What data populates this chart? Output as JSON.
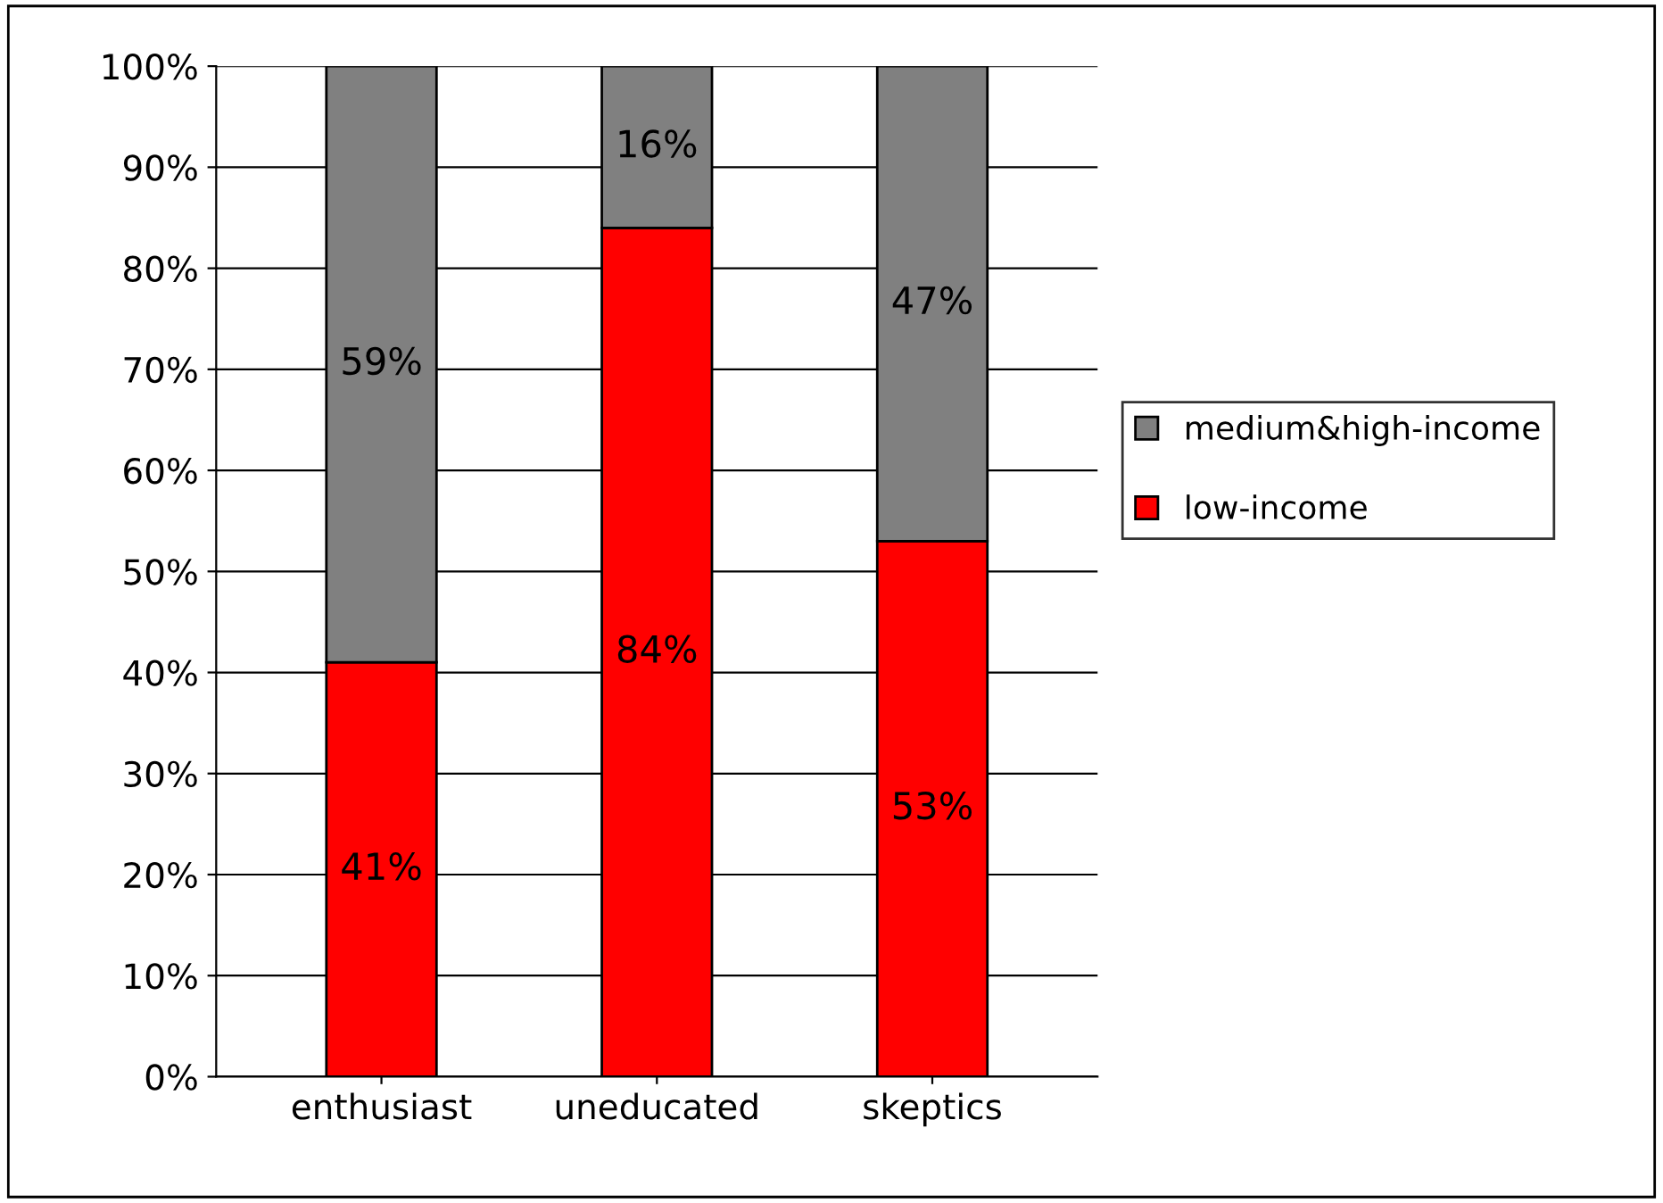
{
  "chart_data": {
    "type": "bar",
    "stacked": true,
    "categories": [
      "enthusiast",
      "uneducated",
      "skeptics"
    ],
    "series": [
      {
        "name": "low-income",
        "color": "#ff0000",
        "values": [
          41,
          84,
          53
        ]
      },
      {
        "name": "medium&high-income",
        "color": "#808080",
        "values": [
          59,
          16,
          47
        ]
      }
    ],
    "ylim": [
      0,
      100
    ],
    "yticks": [
      {
        "value": 0,
        "label": "0%"
      },
      {
        "value": 10,
        "label": "10%"
      },
      {
        "value": 20,
        "label": "20%"
      },
      {
        "value": 30,
        "label": "30%"
      },
      {
        "value": 40,
        "label": "40%"
      },
      {
        "value": 50,
        "label": "50%"
      },
      {
        "value": 60,
        "label": "60%"
      },
      {
        "value": 70,
        "label": "70%"
      },
      {
        "value": 80,
        "label": "80%"
      },
      {
        "value": 90,
        "label": "90%"
      },
      {
        "value": 100,
        "label": "100%"
      }
    ],
    "value_labels": [
      [
        "41%",
        "84%",
        "53%"
      ],
      [
        "59%",
        "16%",
        "47%"
      ]
    ],
    "grid": "y",
    "legend": "right"
  }
}
